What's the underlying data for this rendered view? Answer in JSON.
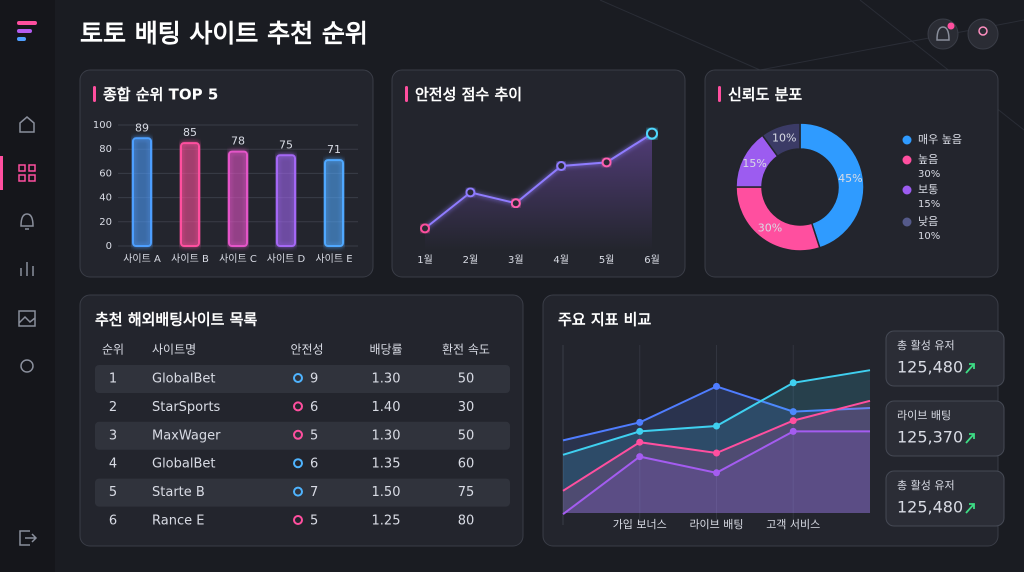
{
  "header": {
    "title": "토토 배팅 사이트 추천 순위"
  },
  "chart_data": [
    {
      "type": "bar",
      "title": "종합 순위 TOP 5",
      "categories": [
        "사이트 A",
        "사이트 B",
        "사이트 C",
        "사이트 D",
        "사이트 E"
      ],
      "values": [
        89,
        85,
        78,
        75,
        71
      ],
      "colors": [
        "#4d9fff",
        "#ff4f9f",
        "#e455c8",
        "#a467f5",
        "#4fa8ff"
      ],
      "ylim": [
        0,
        100
      ],
      "yticks": [
        0,
        20,
        40,
        60,
        80,
        100
      ],
      "grid": true
    },
    {
      "type": "line",
      "title": "안전성 점수 추이",
      "categories": [
        "1월",
        "2월",
        "3월",
        "4월",
        "5월",
        "6월"
      ],
      "values": [
        18,
        48,
        39,
        70,
        73,
        97
      ],
      "colors": [
        "#ff4f9f",
        "#8f7cff",
        "#ff5fb0",
        "#4fd8ff"
      ],
      "ylim": [
        0,
        100
      ]
    },
    {
      "type": "pie",
      "title": "신뢰도 분포",
      "categories": [
        "매우 높음",
        "높음",
        "보통",
        "낮음"
      ],
      "values": [
        45,
        30,
        15,
        10
      ],
      "value_labels": [
        "45%",
        "30%",
        "15%",
        "10%"
      ],
      "colors": [
        "#2f9bff",
        "#ff4f9f",
        "#9c5cf0",
        "#3b3b66"
      ]
    },
    {
      "type": "area",
      "title": "주요 지표 비교",
      "categories": [
        null,
        "가입 보너스",
        "라이브 배팅",
        "고객 서비스",
        null
      ],
      "series": [
        {
          "color": "#4f7dff",
          "values": [
            47,
            57,
            77,
            63,
            65
          ]
        },
        {
          "color": "#3fd0f0",
          "values": [
            39,
            52,
            55,
            79,
            86
          ]
        },
        {
          "color": "#ff4f9f",
          "values": [
            19,
            46,
            40,
            58,
            69
          ]
        },
        {
          "color": "#a45cf0",
          "values": [
            6,
            38,
            29,
            52,
            52
          ]
        }
      ],
      "ylim": [
        0,
        100
      ]
    }
  ],
  "table": {
    "title": "추천 해외배팅사이트 목록",
    "columns": [
      "순위",
      "사이트명",
      "안전성",
      "배당률",
      "환전 속도"
    ],
    "rows": [
      [
        "1",
        "GlobalBet",
        "9",
        "1.30",
        "50"
      ],
      [
        "2",
        "StarSports",
        "6",
        "1.40",
        "30"
      ],
      [
        "3",
        "MaxWager",
        "5",
        "1.30",
        "50"
      ],
      [
        "4",
        "GlobalBet",
        "6",
        "1.35",
        "60"
      ],
      [
        "5",
        "Starte B",
        "7",
        "1.50",
        "75"
      ],
      [
        "6",
        "Rance E",
        "5",
        "1.25",
        "80"
      ]
    ],
    "badge_colors": [
      "#4fb4ff",
      "#ff4f9f",
      "#ff4f9f",
      "#4fb4ff",
      "#4fb4ff",
      "#ff4f9f"
    ]
  },
  "stats": [
    {
      "label": "총 활성 유저",
      "value": "125,480"
    },
    {
      "label": "라이브 배팅",
      "value": "125,370"
    },
    {
      "label": "총 활성 유저",
      "value": "125,480"
    }
  ]
}
